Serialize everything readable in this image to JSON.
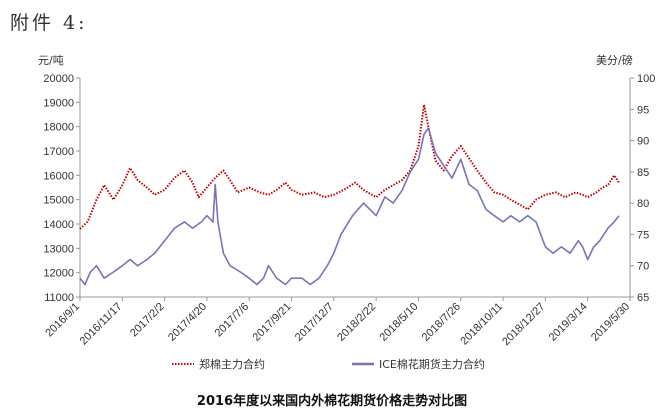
{
  "heading": "附件 4:",
  "caption": "2016年度以来国内外棉花期货价格走势对比图",
  "chart_data": {
    "type": "line",
    "y_left_unit": "元/吨",
    "y_right_unit": "美分/磅",
    "y_left_range": [
      11000,
      20000
    ],
    "y_right_range": [
      65,
      100
    ],
    "y_left_ticks": [
      "11000",
      "12000",
      "13000",
      "14000",
      "15000",
      "16000",
      "17000",
      "18000",
      "19000",
      "20000"
    ],
    "y_right_ticks": [
      "65",
      "70",
      "75",
      "80",
      "85",
      "90",
      "95",
      "100"
    ],
    "x_range": [
      "2016-09-01",
      "2019-05-30"
    ],
    "x_tick_labels": [
      "2016/9/1",
      "2016/11/17",
      "2017/2/2",
      "2017/4/20",
      "2017/7/6",
      "2017/9/21",
      "2017/12/7",
      "2018/2/22",
      "2018/5/10",
      "2018/7/26",
      "2018/10/11",
      "2018/12/27",
      "2019/3/14",
      "2019/5/30"
    ],
    "legend_position": "bottom",
    "grid": false,
    "series": [
      {
        "name": "郑棉主力合约",
        "axis": "left",
        "color": "#c00000",
        "style": "dotted",
        "points": [
          [
            "2016-09-01",
            13800
          ],
          [
            "2016-09-15",
            14100
          ],
          [
            "2016-10-01",
            15000
          ],
          [
            "2016-10-15",
            15600
          ],
          [
            "2016-11-01",
            15000
          ],
          [
            "2016-11-17",
            15600
          ],
          [
            "2016-12-01",
            16300
          ],
          [
            "2016-12-15",
            15800
          ],
          [
            "2017-01-01",
            15500
          ],
          [
            "2017-01-15",
            15200
          ],
          [
            "2017-02-02",
            15400
          ],
          [
            "2017-02-20",
            15900
          ],
          [
            "2017-03-10",
            16200
          ],
          [
            "2017-03-25",
            15700
          ],
          [
            "2017-04-05",
            15100
          ],
          [
            "2017-04-20",
            15500
          ],
          [
            "2017-05-05",
            15900
          ],
          [
            "2017-05-20",
            16200
          ],
          [
            "2017-06-01",
            15800
          ],
          [
            "2017-06-15",
            15300
          ],
          [
            "2017-07-06",
            15500
          ],
          [
            "2017-07-25",
            15300
          ],
          [
            "2017-08-10",
            15200
          ],
          [
            "2017-08-25",
            15400
          ],
          [
            "2017-09-10",
            15700
          ],
          [
            "2017-09-21",
            15400
          ],
          [
            "2017-10-10",
            15200
          ],
          [
            "2017-11-01",
            15300
          ],
          [
            "2017-11-20",
            15100
          ],
          [
            "2017-12-07",
            15200
          ],
          [
            "2017-12-25",
            15400
          ],
          [
            "2018-01-15",
            15700
          ],
          [
            "2018-01-30",
            15400
          ],
          [
            "2018-02-22",
            15100
          ],
          [
            "2018-03-10",
            15400
          ],
          [
            "2018-03-25",
            15600
          ],
          [
            "2018-04-10",
            15800
          ],
          [
            "2018-04-25",
            16200
          ],
          [
            "2018-05-10",
            17200
          ],
          [
            "2018-05-20",
            18900
          ],
          [
            "2018-05-28",
            18000
          ],
          [
            "2018-06-10",
            16600
          ],
          [
            "2018-06-25",
            16200
          ],
          [
            "2018-07-10",
            16800
          ],
          [
            "2018-07-26",
            17200
          ],
          [
            "2018-08-10",
            16700
          ],
          [
            "2018-08-25",
            16200
          ],
          [
            "2018-09-10",
            15700
          ],
          [
            "2018-09-25",
            15300
          ],
          [
            "2018-10-11",
            15200
          ],
          [
            "2018-10-25",
            15000
          ],
          [
            "2018-11-10",
            14800
          ],
          [
            "2018-11-25",
            14600
          ],
          [
            "2018-12-10",
            15000
          ],
          [
            "2018-12-27",
            15200
          ],
          [
            "2019-01-15",
            15300
          ],
          [
            "2019-02-01",
            15100
          ],
          [
            "2019-02-20",
            15300
          ],
          [
            "2019-03-05",
            15200
          ],
          [
            "2019-03-14",
            15100
          ],
          [
            "2019-03-30",
            15300
          ],
          [
            "2019-04-10",
            15500
          ],
          [
            "2019-04-20",
            15600
          ],
          [
            "2019-05-01",
            16000
          ],
          [
            "2019-05-10",
            15700
          ]
        ]
      },
      {
        "name": "ICE棉花期货主力合约",
        "axis": "right",
        "color": "#7b73b5",
        "style": "solid",
        "points": [
          [
            "2016-09-01",
            68
          ],
          [
            "2016-09-10",
            67
          ],
          [
            "2016-09-20",
            69
          ],
          [
            "2016-10-01",
            70
          ],
          [
            "2016-10-15",
            68
          ],
          [
            "2016-11-01",
            69
          ],
          [
            "2016-11-17",
            70
          ],
          [
            "2016-12-01",
            71
          ],
          [
            "2016-12-15",
            70
          ],
          [
            "2017-01-01",
            71
          ],
          [
            "2017-01-15",
            72
          ],
          [
            "2017-02-02",
            74
          ],
          [
            "2017-02-20",
            76
          ],
          [
            "2017-03-10",
            77
          ],
          [
            "2017-03-25",
            76
          ],
          [
            "2017-04-10",
            77
          ],
          [
            "2017-04-20",
            78
          ],
          [
            "2017-05-01",
            77
          ],
          [
            "2017-05-05",
            83
          ],
          [
            "2017-05-10",
            77
          ],
          [
            "2017-05-20",
            72
          ],
          [
            "2017-06-01",
            70
          ],
          [
            "2017-06-20",
            69
          ],
          [
            "2017-07-06",
            68
          ],
          [
            "2017-07-20",
            67
          ],
          [
            "2017-08-01",
            68
          ],
          [
            "2017-08-10",
            70
          ],
          [
            "2017-08-25",
            68
          ],
          [
            "2017-09-10",
            67
          ],
          [
            "2017-09-21",
            68
          ],
          [
            "2017-10-10",
            68
          ],
          [
            "2017-10-25",
            67
          ],
          [
            "2017-11-10",
            68
          ],
          [
            "2017-11-25",
            70
          ],
          [
            "2017-12-07",
            72
          ],
          [
            "2017-12-20",
            75
          ],
          [
            "2018-01-10",
            78
          ],
          [
            "2018-01-30",
            80
          ],
          [
            "2018-02-22",
            78
          ],
          [
            "2018-03-10",
            81
          ],
          [
            "2018-03-25",
            80
          ],
          [
            "2018-04-10",
            82
          ],
          [
            "2018-04-25",
            85
          ],
          [
            "2018-05-10",
            87
          ],
          [
            "2018-05-20",
            91
          ],
          [
            "2018-05-28",
            92
          ],
          [
            "2018-06-10",
            88
          ],
          [
            "2018-06-25",
            86
          ],
          [
            "2018-07-10",
            84
          ],
          [
            "2018-07-26",
            87
          ],
          [
            "2018-08-10",
            83
          ],
          [
            "2018-08-25",
            82
          ],
          [
            "2018-09-10",
            79
          ],
          [
            "2018-09-25",
            78
          ],
          [
            "2018-10-11",
            77
          ],
          [
            "2018-10-25",
            78
          ],
          [
            "2018-11-10",
            77
          ],
          [
            "2018-11-25",
            78
          ],
          [
            "2018-12-10",
            77
          ],
          [
            "2018-12-27",
            73
          ],
          [
            "2019-01-10",
            72
          ],
          [
            "2019-01-25",
            73
          ],
          [
            "2019-02-10",
            72
          ],
          [
            "2019-02-25",
            74
          ],
          [
            "2019-03-05",
            73
          ],
          [
            "2019-03-14",
            71
          ],
          [
            "2019-03-25",
            73
          ],
          [
            "2019-04-05",
            74
          ],
          [
            "2019-04-20",
            76
          ],
          [
            "2019-05-01",
            77
          ],
          [
            "2019-05-10",
            78
          ]
        ]
      }
    ]
  }
}
